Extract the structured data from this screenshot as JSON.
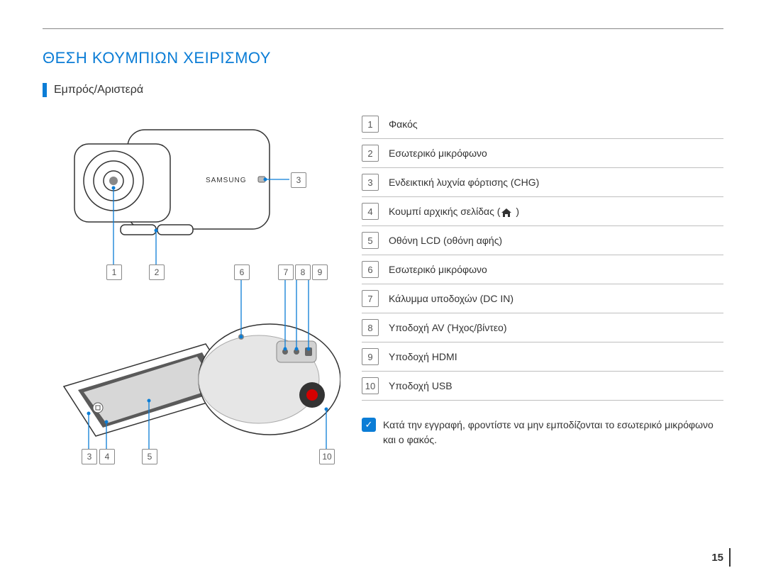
{
  "page": {
    "title": "ΘΕΣΗ ΚΟΥΜΠΙΩΝ ΧΕΙΡΙΣΜΟΥ",
    "subtitle": "Εμπρός/Αριστερά",
    "page_number": "15"
  },
  "colors": {
    "accent": "#0b7dd6",
    "text": "#333333",
    "rule": "#888888",
    "list_border": "#bfbfbf"
  },
  "parts": [
    {
      "n": "1",
      "label": "Φακός"
    },
    {
      "n": "2",
      "label": "Εσωτερικό μικρόφωνο"
    },
    {
      "n": "3",
      "label": "Ενδεικτική λυχνία φόρτισης (CHG)"
    },
    {
      "n": "4",
      "label": "Κουμπί αρχικής σελίδας (",
      "has_home_icon": true,
      "label_after": " )"
    },
    {
      "n": "5",
      "label": "Οθόνη LCD (οθόνη αφής)"
    },
    {
      "n": "6",
      "label": "Εσωτερικό μικρόφωνο"
    },
    {
      "n": "7",
      "label": "Κάλυμμα υποδοχών (DC IN)"
    },
    {
      "n": "8",
      "label": "Υποδοχή AV (Ήχος/βίντεο)"
    },
    {
      "n": "9",
      "label": "Υποδοχή HDMI"
    },
    {
      "n": "10",
      "label": "Υποδοχή USB"
    }
  ],
  "note": {
    "icon": "✓",
    "text": "Κατά την εγγραφή, φροντίστε να μην εμποδίζονται το εσωτερικό μικρόφωνο και ο φακός."
  },
  "diagram": {
    "brand_text": "SAMSUNG",
    "callouts_top": [
      "1",
      "2",
      "3",
      "6",
      "7",
      "8",
      "9"
    ],
    "callouts_bottom": [
      "3",
      "4",
      "5",
      "10"
    ]
  }
}
